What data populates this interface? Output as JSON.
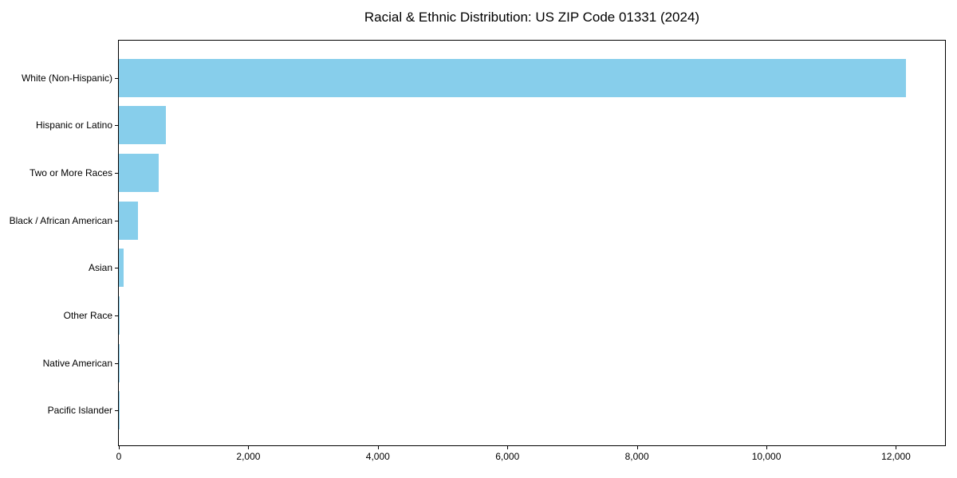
{
  "chart_data": {
    "type": "bar",
    "orientation": "horizontal",
    "title": "Racial & Ethnic Distribution: US ZIP Code 01331 (2024)",
    "categories": [
      "White (Non-Hispanic)",
      "Hispanic or Latino",
      "Two or More Races",
      "Black / African American",
      "Asian",
      "Other Race",
      "Native American",
      "Pacific Islander"
    ],
    "values": [
      12160,
      730,
      620,
      290,
      70,
      12,
      5,
      2
    ],
    "bar_color": "#87CEEB",
    "axis_color": "#000000",
    "background_color": "#ffffff",
    "xlabel": "",
    "ylabel": "",
    "xlim": [
      0,
      12770
    ],
    "xticks": [
      {
        "value": 0,
        "label": "0"
      },
      {
        "value": 2000,
        "label": "2,000"
      },
      {
        "value": 4000,
        "label": "4,000"
      },
      {
        "value": 6000,
        "label": "6,000"
      },
      {
        "value": 8000,
        "label": "8,000"
      },
      {
        "value": 10000,
        "label": "10,000"
      },
      {
        "value": 12000,
        "label": "12,000"
      }
    ],
    "grid": false,
    "legend": null
  }
}
